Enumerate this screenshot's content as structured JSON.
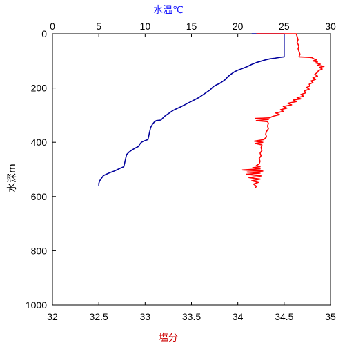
{
  "chart_data": {
    "type": "line",
    "title": "",
    "top_axis": {
      "label": "水温℃",
      "color": "#1a1aff",
      "range": [
        0,
        30
      ],
      "ticks": [
        "0",
        "5",
        "10",
        "15",
        "20",
        "25",
        "30"
      ]
    },
    "bottom_axis": {
      "label": "塩分",
      "color": "#cc0000",
      "range": [
        32,
        35
      ],
      "ticks": [
        "32",
        "32.5",
        "33",
        "33.5",
        "34",
        "34.5",
        "35"
      ]
    },
    "y_axis": {
      "label": "水深m",
      "range": [
        0,
        1000
      ],
      "inverted": true,
      "ticks": [
        "0",
        "200",
        "400",
        "600",
        "800",
        "1000"
      ]
    },
    "grid": false,
    "series": [
      {
        "quantity": "temperature",
        "axis": "top",
        "color": "#00009c",
        "points": [
          [
            21.5,
            0
          ],
          [
            25.0,
            0
          ],
          [
            25.0,
            85
          ],
          [
            24.5,
            87
          ],
          [
            24.0,
            90
          ],
          [
            23.5,
            92
          ],
          [
            23.0,
            96
          ],
          [
            22.5,
            101
          ],
          [
            22.0,
            106
          ],
          [
            21.5,
            113
          ],
          [
            21.0,
            121
          ],
          [
            20.5,
            128
          ],
          [
            20.0,
            134
          ],
          [
            19.6,
            141
          ],
          [
            19.3,
            148
          ],
          [
            19.0,
            156
          ],
          [
            18.8,
            163
          ],
          [
            18.6,
            170
          ],
          [
            18.3,
            177
          ],
          [
            18.0,
            184
          ],
          [
            17.7,
            188
          ],
          [
            17.4,
            194
          ],
          [
            17.2,
            200
          ],
          [
            17.0,
            207
          ],
          [
            16.7,
            214
          ],
          [
            16.4,
            221
          ],
          [
            16.1,
            228
          ],
          [
            15.8,
            235
          ],
          [
            15.4,
            242
          ],
          [
            15.0,
            249
          ],
          [
            14.6,
            256
          ],
          [
            14.2,
            263
          ],
          [
            13.8,
            270
          ],
          [
            13.4,
            276
          ],
          [
            13.0,
            283
          ],
          [
            12.7,
            290
          ],
          [
            12.4,
            297
          ],
          [
            12.1,
            304
          ],
          [
            11.9,
            311
          ],
          [
            11.7,
            318
          ],
          [
            11.2,
            320
          ],
          [
            11.0,
            325
          ],
          [
            10.8,
            333
          ],
          [
            10.6,
            345
          ],
          [
            10.5,
            360
          ],
          [
            10.4,
            375
          ],
          [
            10.3,
            390
          ],
          [
            9.9,
            395
          ],
          [
            9.6,
            400
          ],
          [
            9.4,
            408
          ],
          [
            9.3,
            415
          ],
          [
            9.0,
            420
          ],
          [
            8.6,
            428
          ],
          [
            8.3,
            435
          ],
          [
            8.0,
            445
          ],
          [
            7.9,
            460
          ],
          [
            7.8,
            475
          ],
          [
            7.7,
            490
          ],
          [
            7.3,
            496
          ],
          [
            7.0,
            501
          ],
          [
            6.6,
            507
          ],
          [
            6.2,
            512
          ],
          [
            5.8,
            518
          ],
          [
            5.5,
            523
          ],
          [
            5.3,
            532
          ],
          [
            5.1,
            542
          ],
          [
            5.0,
            552
          ],
          [
            5.0,
            562
          ]
        ]
      },
      {
        "quantity": "salinity",
        "axis": "bottom",
        "color": "#ff0000",
        "points": [
          [
            34.2,
            0
          ],
          [
            34.63,
            0
          ],
          [
            34.64,
            10
          ],
          [
            34.65,
            22
          ],
          [
            34.64,
            32
          ],
          [
            34.66,
            45
          ],
          [
            34.65,
            55
          ],
          [
            34.66,
            65
          ],
          [
            34.67,
            75
          ],
          [
            34.66,
            85
          ],
          [
            34.72,
            86
          ],
          [
            34.78,
            87
          ],
          [
            34.8,
            88
          ],
          [
            34.82,
            92
          ],
          [
            34.85,
            96
          ],
          [
            34.81,
            100
          ],
          [
            34.86,
            104
          ],
          [
            34.84,
            108
          ],
          [
            34.89,
            112
          ],
          [
            34.86,
            116
          ],
          [
            34.93,
            120
          ],
          [
            34.88,
            124
          ],
          [
            34.91,
            130
          ],
          [
            34.87,
            136
          ],
          [
            34.86,
            142
          ],
          [
            34.83,
            150
          ],
          [
            34.86,
            156
          ],
          [
            34.81,
            162
          ],
          [
            34.84,
            168
          ],
          [
            34.79,
            174
          ],
          [
            34.81,
            180
          ],
          [
            34.77,
            186
          ],
          [
            34.78,
            192
          ],
          [
            34.74,
            198
          ],
          [
            34.77,
            204
          ],
          [
            34.72,
            210
          ],
          [
            34.73,
            218
          ],
          [
            34.68,
            224
          ],
          [
            34.71,
            230
          ],
          [
            34.64,
            236
          ],
          [
            34.68,
            240
          ],
          [
            34.6,
            244
          ],
          [
            34.63,
            250
          ],
          [
            34.54,
            256
          ],
          [
            34.58,
            262
          ],
          [
            34.49,
            268
          ],
          [
            34.53,
            274
          ],
          [
            34.46,
            280
          ],
          [
            34.49,
            286
          ],
          [
            34.41,
            292
          ],
          [
            34.45,
            298
          ],
          [
            34.38,
            304
          ],
          [
            34.34,
            310
          ],
          [
            34.19,
            312
          ],
          [
            34.33,
            316
          ],
          [
            34.2,
            320
          ],
          [
            34.32,
            324
          ],
          [
            34.33,
            330
          ],
          [
            34.32,
            340
          ],
          [
            34.33,
            350
          ],
          [
            34.31,
            360
          ],
          [
            34.3,
            370
          ],
          [
            34.31,
            380
          ],
          [
            34.28,
            390
          ],
          [
            34.18,
            396
          ],
          [
            34.27,
            400
          ],
          [
            34.19,
            404
          ],
          [
            34.26,
            410
          ],
          [
            34.25,
            420
          ],
          [
            34.26,
            430
          ],
          [
            34.24,
            440
          ],
          [
            34.25,
            450
          ],
          [
            34.23,
            460
          ],
          [
            34.24,
            470
          ],
          [
            34.23,
            480
          ],
          [
            34.2,
            486
          ],
          [
            34.24,
            490
          ],
          [
            34.16,
            494
          ],
          [
            34.24,
            498
          ],
          [
            34.05,
            502
          ],
          [
            34.27,
            506
          ],
          [
            34.1,
            510
          ],
          [
            34.24,
            514
          ],
          [
            34.09,
            518
          ],
          [
            34.25,
            524
          ],
          [
            34.12,
            530
          ],
          [
            34.24,
            536
          ],
          [
            34.15,
            542
          ],
          [
            34.22,
            548
          ],
          [
            34.17,
            554
          ],
          [
            34.2,
            562
          ],
          [
            34.19,
            568
          ]
        ]
      }
    ]
  }
}
